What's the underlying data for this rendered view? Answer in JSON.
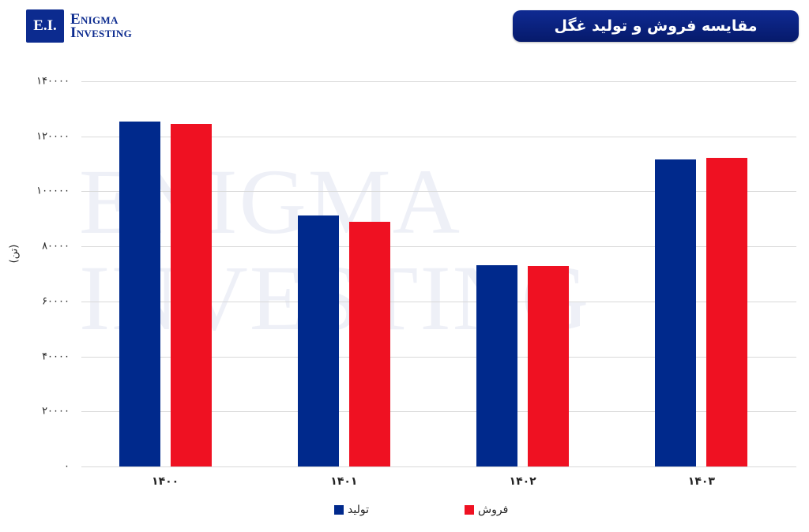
{
  "logo": {
    "box_text": "E.I.",
    "line1": "Enigma",
    "line2": "Investing"
  },
  "title": "مقایسه فروش و تولید غگل",
  "watermark": {
    "line1": "ENIGMA",
    "line2": "INVESTING"
  },
  "colors": {
    "production": "#00298c",
    "sales": "#ef1122",
    "title_bg": "#0c2785",
    "grid": "#d9d9d9"
  },
  "legend": {
    "production": "تولید",
    "sales": "فروش"
  },
  "chart_data": {
    "type": "bar",
    "title": "مقایسه فروش و تولید غگل",
    "xlabel": "",
    "ylabel": "(تن)",
    "categories": [
      "۱۴۰۰",
      "۱۴۰۱",
      "۱۴۰۲",
      "۱۴۰۳"
    ],
    "series": [
      {
        "name": "تولید",
        "color": "#00298c",
        "values": [
          125400,
          91200,
          73100,
          111600
        ]
      },
      {
        "name": "فروش",
        "color": "#ef1122",
        "values": [
          124500,
          88900,
          72900,
          112200
        ]
      }
    ],
    "ylim": [
      0,
      140000
    ],
    "yticks": [
      0,
      20000,
      40000,
      60000,
      80000,
      100000,
      120000,
      140000
    ],
    "ytick_labels": [
      "۰",
      "۲۰۰۰۰",
      "۴۰۰۰۰",
      "۶۰۰۰۰",
      "۸۰۰۰۰",
      "۱۰۰۰۰۰",
      "۱۲۰۰۰۰",
      "۱۴۰۰۰۰"
    ],
    "grid": true,
    "legend_position": "bottom"
  }
}
